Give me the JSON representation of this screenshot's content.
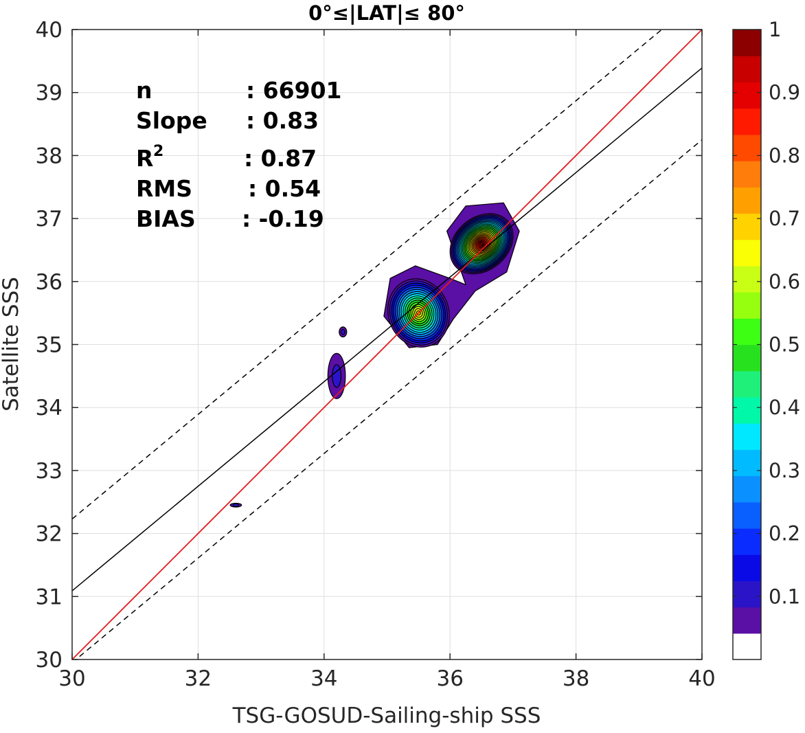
{
  "chart_data": {
    "type": "contour",
    "title": "0°≤|LAT|≤ 80°",
    "xlabel": "TSG-GOSUD-Sailing-ship SSS",
    "ylabel": "Satellite SSS",
    "xlim": [
      30,
      40
    ],
    "ylim": [
      30,
      40
    ],
    "xticks": [
      "30",
      "32",
      "34",
      "36",
      "38",
      "40"
    ],
    "yticks": [
      "30",
      "31",
      "32",
      "33",
      "34",
      "35",
      "36",
      "37",
      "38",
      "39",
      "40"
    ],
    "grid": true,
    "stats": [
      {
        "label": "n",
        "sep": ": 66901"
      },
      {
        "label": "Slope",
        "sep": ": 0.83"
      },
      {
        "label": "R",
        "sup": "2",
        "sep": ": 0.87"
      },
      {
        "label": "RMS",
        "sep": ": 0.54"
      },
      {
        "label": "BIAS",
        "sep": ": -0.19"
      }
    ],
    "lines": {
      "identity": {
        "color": "#e41a1c",
        "slope": 1.0,
        "intercept": 0.0
      },
      "fit": {
        "color": "#000000",
        "slope": 0.83,
        "intercept": 6.19
      },
      "bounds": {
        "color": "#000000",
        "style": "dashed",
        "slope": 0.83,
        "intercept_upper": 7.33,
        "intercept_lower": 5.05
      }
    },
    "density_peaks": [
      {
        "x": 36.5,
        "y": 36.6,
        "value": 1.0
      },
      {
        "x": 35.5,
        "y": 35.5,
        "value": 0.7
      },
      {
        "x": 34.2,
        "y": 34.5,
        "value": 0.1
      },
      {
        "x": 34.3,
        "y": 35.2,
        "value": 0.1
      },
      {
        "x": 32.6,
        "y": 32.45,
        "value": 0.1
      }
    ],
    "colorbar": {
      "ticks": [
        "0.1",
        "0.2",
        "0.3",
        "0.4",
        "0.5",
        "0.6",
        "0.7",
        "0.8",
        "0.9",
        "1"
      ],
      "colors": [
        "#ffffff",
        "#5a0fa5",
        "#2b14c8",
        "#0a0ae6",
        "#0a2cff",
        "#0a60ff",
        "#0a90ff",
        "#00bbff",
        "#00e8ff",
        "#00f8a8",
        "#1ef07a",
        "#28e11e",
        "#3cff14",
        "#96ff0f",
        "#c8ff14",
        "#fbff05",
        "#ffd200",
        "#ffa000",
        "#ff7d0a",
        "#ff4a00",
        "#ff1a00",
        "#e40000",
        "#c80000",
        "#8c0000"
      ]
    }
  }
}
